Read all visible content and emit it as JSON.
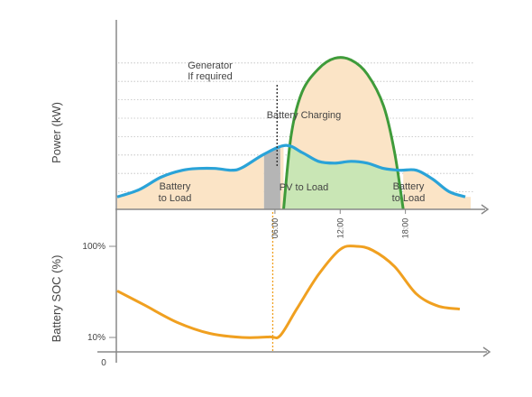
{
  "chart_data": [
    {
      "type": "area",
      "ylabel": "Power (kW)",
      "x_ticks": [
        "06:00",
        "12:00",
        "18:00"
      ],
      "x_range_hours": [
        -8.5,
        24
      ],
      "load_profile": {
        "x": [
          -8.5,
          -6.5,
          -4.5,
          -2.5,
          -1,
          0.5,
          2,
          3,
          5,
          7,
          8.5,
          10,
          11.5,
          13,
          14.5,
          16,
          17.5,
          19,
          20.5,
          22,
          23.5
        ],
        "y": [
          0.7,
          1.1,
          1.8,
          2.2,
          2.3,
          2.3,
          2.2,
          2.35,
          3.1,
          3.6,
          3.2,
          2.7,
          2.6,
          2.7,
          2.6,
          2.3,
          2.2,
          2.2,
          1.7,
          1.0,
          0.7
        ]
      },
      "pv_profile": {
        "x": [
          6.8,
          7.5,
          8.5,
          10,
          11.5,
          13,
          14.5,
          16,
          17,
          17.8
        ],
        "y": [
          0,
          4.2,
          6.6,
          7.9,
          8.5,
          8.4,
          7.6,
          5.8,
          3.2,
          0
        ]
      },
      "generator_window_hours": [
        5,
        6.5
      ],
      "generator_note_x": 6.2,
      "annotations": [
        {
          "text": "Generator",
          "line": 1
        },
        {
          "text": "If required",
          "line": 2
        }
      ],
      "area_labels": {
        "battery_charging": "Battery Charging",
        "pv_to_load": "PV to Load",
        "battery_to_load_left": [
          "Battery",
          "to Load"
        ],
        "battery_to_load_right": [
          "Battery",
          "to Load"
        ]
      },
      "colors": {
        "load_line": "#2aa3d8",
        "pv_line": "#3f9b3a",
        "battery_fill": "#fbe4c6",
        "pv_fill": "#c9e6b5",
        "generator_fill": "#b5b5b5",
        "axis": "#888888",
        "grid": "#bdbdbd"
      },
      "grid": "dotted"
    },
    {
      "type": "line",
      "ylabel": "Battery SOC (%)",
      "y_ticks": [
        "100%",
        "10%"
      ],
      "y_origin_label": "0",
      "soc": {
        "x": [
          -8.5,
          -6,
          -3,
          0,
          3,
          5.5,
          6.5,
          8,
          10,
          12,
          13.5,
          15,
          17,
          19,
          21,
          23
        ],
        "y": [
          56,
          42,
          25,
          14,
          10,
          10.5,
          12,
          38,
          72,
          97,
          100,
          96,
          80,
          53,
          41,
          38
        ]
      },
      "marker_x": 5.8,
      "colors": {
        "soc_line": "#f0a020",
        "marker": "#f0a020"
      }
    }
  ]
}
